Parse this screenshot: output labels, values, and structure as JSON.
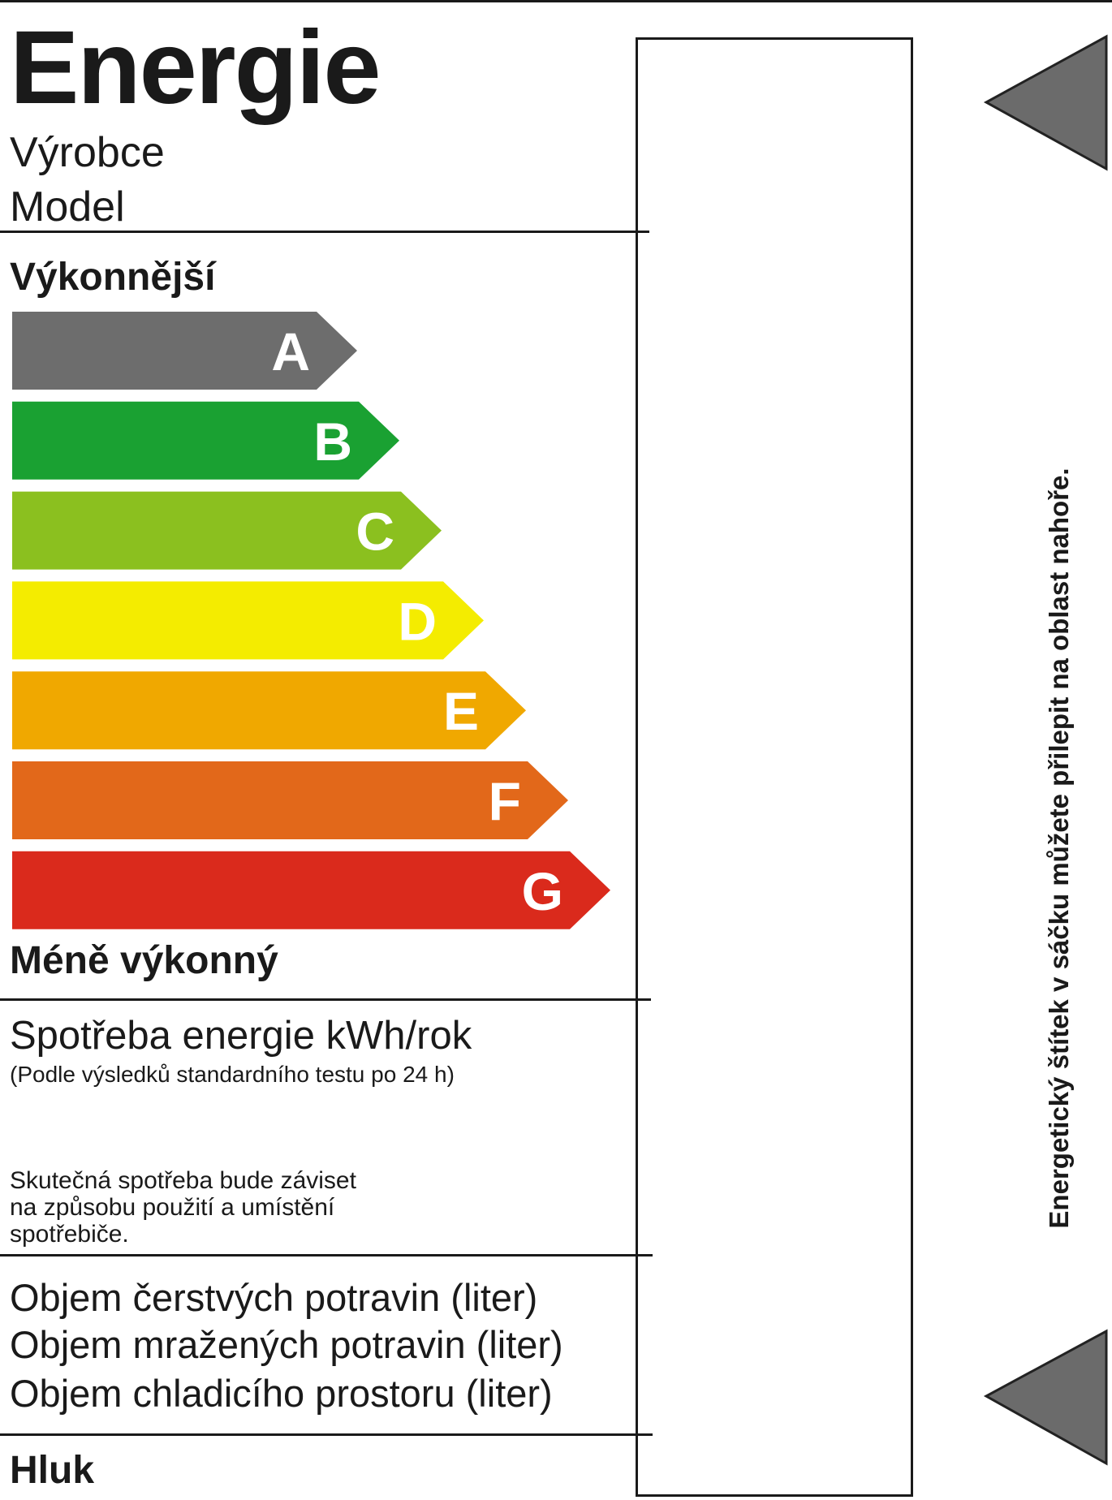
{
  "header": {
    "title": "Energie",
    "manufacturer_label": "Výrobce",
    "model_label": "Model"
  },
  "scale": {
    "top_label": "Výkonnější",
    "bottom_label": "Méně výkonný",
    "classes": [
      {
        "letter": "A",
        "color": "#6d6d6d"
      },
      {
        "letter": "B",
        "color": "#1aa132"
      },
      {
        "letter": "C",
        "color": "#8bc01f"
      },
      {
        "letter": "D",
        "color": "#f4ec00"
      },
      {
        "letter": "E",
        "color": "#f0a800"
      },
      {
        "letter": "F",
        "color": "#e2681a"
      },
      {
        "letter": "G",
        "color": "#da2a1c"
      }
    ]
  },
  "consumption": {
    "title": "Spotřeba energie kWh/rok",
    "note": "(Podle výsledků standardního testu po 24 h)",
    "disclaimer_lines": [
      "Skutečná spotřeba bude záviset",
      "na způsobu použití a umístění",
      "spotřebiče."
    ]
  },
  "volumes": {
    "lines": [
      "Objem čerstvých potravin (liter)",
      "Objem mražených potravin (liter)",
      "Objem chladicího prostoru (liter)"
    ]
  },
  "noise": {
    "title": "Hluk"
  },
  "side_note": "Energetický štítek v sáčku můžete přilepit na oblast nahoře.",
  "colors": {
    "arrow_marker": "#6b6b6b",
    "rule": "#1a1a1a"
  }
}
